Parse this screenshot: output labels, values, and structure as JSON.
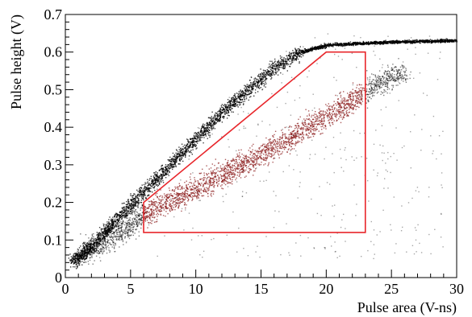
{
  "chart_data": {
    "type": "scatter",
    "title": "",
    "xlabel": "Pulse area (V-ns)",
    "ylabel": "Pulse height (V)",
    "xlim": [
      0,
      30
    ],
    "ylim": [
      0,
      0.7
    ],
    "xticks": [
      "0",
      "5",
      "10",
      "15",
      "20",
      "25",
      "30"
    ],
    "yticks": [
      "0",
      "0.1",
      "0.2",
      "0.3",
      "0.4",
      "0.5",
      "0.6",
      "0.7"
    ],
    "grid": false,
    "series": [
      {
        "color": "#000000",
        "trend": [
          [
            0.6,
            0.045
          ],
          [
            2,
            0.085
          ],
          [
            4,
            0.16
          ],
          [
            6,
            0.23
          ],
          [
            8,
            0.3
          ],
          [
            10,
            0.37
          ],
          [
            12,
            0.44
          ],
          [
            14,
            0.5
          ],
          [
            16,
            0.56
          ],
          [
            18,
            0.6
          ],
          [
            20,
            0.62
          ],
          [
            25,
            0.628
          ],
          [
            30,
            0.632
          ]
        ]
      },
      {
        "color": "#000000",
        "trend": [
          [
            1.5,
            0.07
          ],
          [
            4,
            0.12
          ],
          [
            6,
            0.17
          ],
          [
            8,
            0.205
          ],
          [
            10,
            0.24
          ],
          [
            12,
            0.275
          ],
          [
            14,
            0.31
          ],
          [
            16,
            0.35
          ],
          [
            18,
            0.39
          ],
          [
            20,
            0.43
          ],
          [
            22,
            0.47
          ],
          [
            24,
            0.52
          ],
          [
            26,
            0.55
          ]
        ]
      }
    ],
    "selection_region": {
      "color": "#e8262b",
      "polygon": [
        [
          6,
          0.12
        ],
        [
          6,
          0.2
        ],
        [
          20,
          0.6
        ],
        [
          23,
          0.6
        ],
        [
          23,
          0.12
        ]
      ]
    },
    "annotations": []
  }
}
